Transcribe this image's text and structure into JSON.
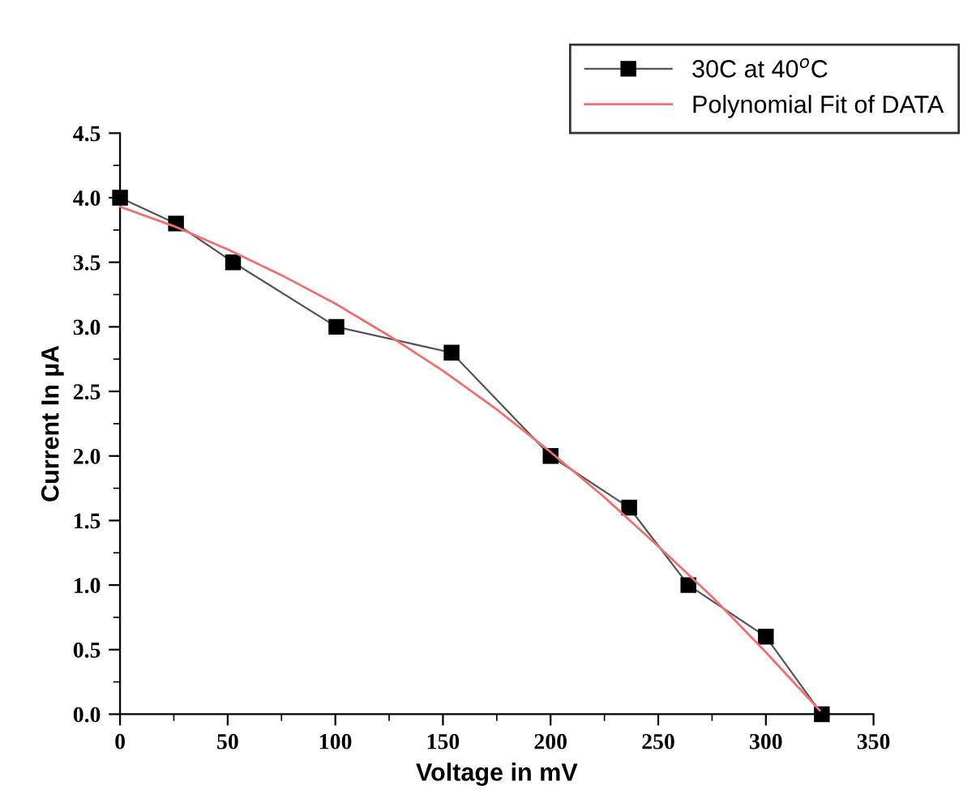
{
  "chart_data": {
    "type": "line",
    "xlabel": "Voltage in mV",
    "ylabel": "Current In µA",
    "xlim": [
      0,
      350
    ],
    "xticks": [
      0,
      50,
      100,
      150,
      200,
      250,
      300,
      350
    ],
    "ylim": [
      0,
      4.5
    ],
    "yticks": [
      {
        "value": 0,
        "label": "0.0"
      },
      {
        "value": 0.5,
        "label": "0.5"
      },
      {
        "value": 1,
        "label": "1.0"
      },
      {
        "value": 1.5,
        "label": "1.5"
      },
      {
        "value": 2,
        "label": "2.0"
      },
      {
        "value": 2.5,
        "label": "2.5"
      },
      {
        "value": 3,
        "label": "3.0"
      },
      {
        "value": 3.5,
        "label": "3.5"
      },
      {
        "value": 4,
        "label": "4.0"
      },
      {
        "value": 4.5,
        "label": "4.5"
      }
    ],
    "legend": "top right",
    "grid": false,
    "series": [
      {
        "name": "30C at 40$^{o}$C",
        "color": "#000000",
        "marker": "square",
        "x": [
          0,
          26,
          52.5,
          100.5,
          154,
          200,
          236.5,
          264,
          300,
          326
        ],
        "values": [
          4.0,
          3.8,
          3.5,
          3.0,
          2.8,
          2.0,
          1.6,
          1.0,
          0.6,
          0.0
        ]
      },
      {
        "name": "Polynomial Fit of DATA",
        "color": "#f07070",
        "marker": "none",
        "x": [
          0,
          25,
          50,
          75,
          100,
          125,
          150,
          175,
          200,
          225,
          250,
          275,
          300,
          325
        ],
        "values": [
          3.93,
          3.78,
          3.6,
          3.4,
          3.18,
          2.93,
          2.66,
          2.36,
          2.03,
          1.68,
          1.3,
          0.91,
          0.48,
          0.03
        ]
      }
    ]
  }
}
